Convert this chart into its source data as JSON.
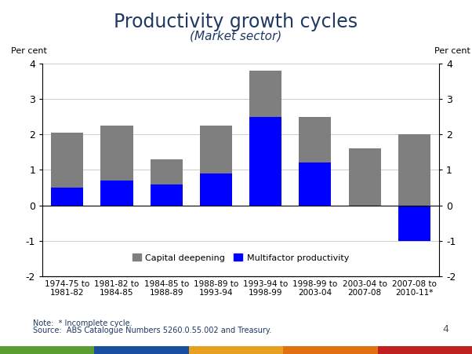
{
  "title": "Productivity growth cycles",
  "subtitle": "(Market sector)",
  "title_color": "#1f3864",
  "subtitle_color": "#1f3864",
  "categories": [
    "1974-75 to\n1981-82",
    "1981-82 to\n1984-85",
    "1984-85 to\n1988-89",
    "1988-89 to\n1993-94",
    "1993-94 to\n1998-99",
    "1998-99 to\n2003-04",
    "2003-04 to\n2007-08",
    "2007-08 to\n2010-11*"
  ],
  "multifactor_productivity": [
    0.5,
    0.7,
    0.6,
    0.9,
    2.5,
    1.2,
    0.0,
    -1.0
  ],
  "capital_deepening": [
    1.55,
    1.55,
    0.7,
    1.35,
    1.3,
    1.3,
    1.6,
    3.0
  ],
  "total_values": [
    2.05,
    2.25,
    1.3,
    2.25,
    3.8,
    2.5,
    1.6,
    2.0
  ],
  "mfp_color": "#0000FF",
  "capital_color": "#7f7f7f",
  "ylim": [
    -2,
    4
  ],
  "yticks": [
    -2,
    -1,
    0,
    1,
    2,
    3,
    4
  ],
  "ylabel_left": "Per cent",
  "ylabel_right": "Per cent",
  "note": "Note:  * Incomplete cycle.",
  "source": "Source:  ABS Catalogue Numbers 5260.0.55.002 and Treasury.",
  "page_num": "4",
  "background_color": "#ffffff",
  "legend_capital": "Capital deepening",
  "legend_mfp": "Multifactor productivity",
  "bar_width": 0.65
}
